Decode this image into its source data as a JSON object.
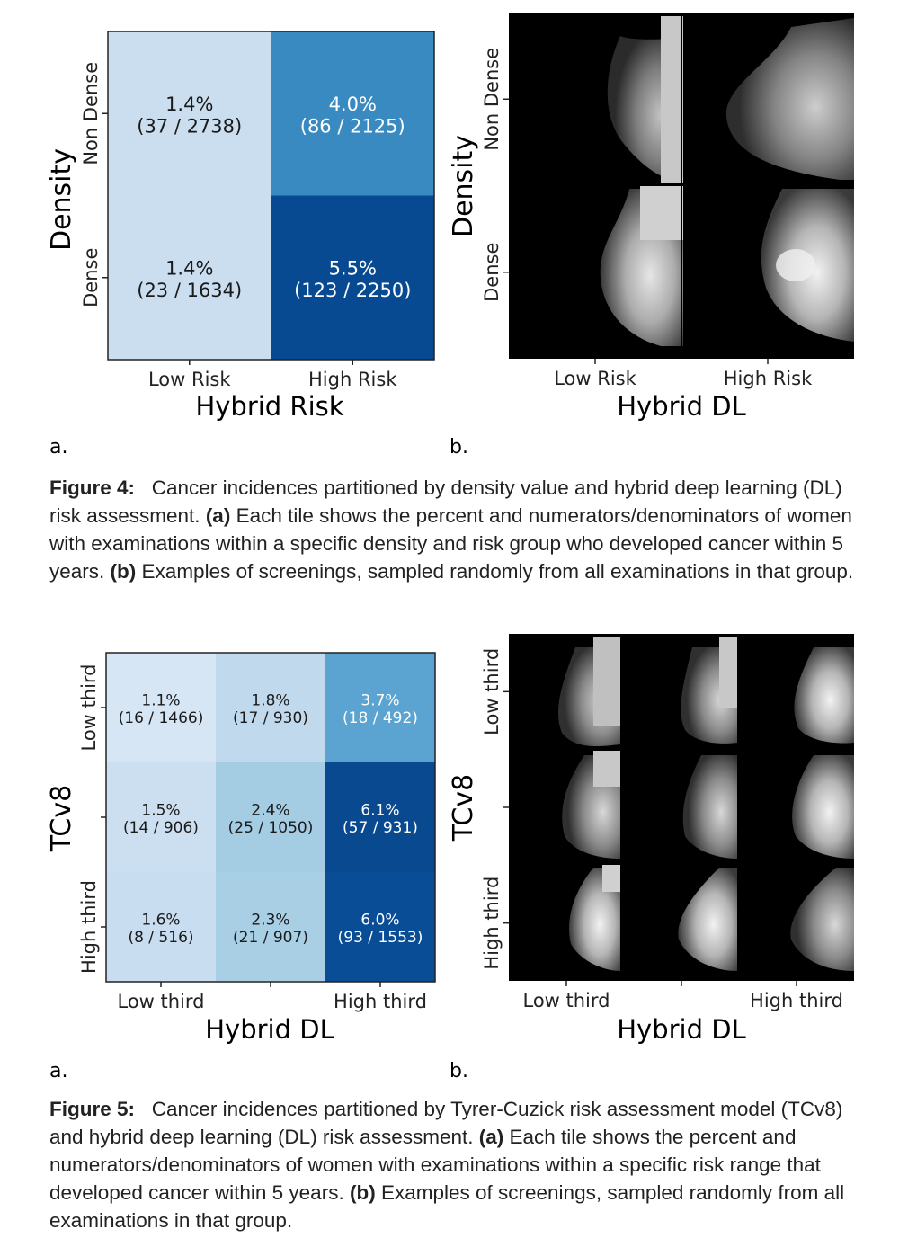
{
  "figure4": {
    "heatmap": {
      "xlabel": "Hybrid Risk",
      "ylabel": "Density",
      "x_ticks": [
        "Low Risk",
        "High Risk"
      ],
      "y_ticks": [
        "Non Dense",
        "Dense"
      ],
      "panel_label": "a."
    },
    "mammo": {
      "xlabel": "Hybrid DL",
      "ylabel": "Density",
      "x_ticks": [
        "Low Risk",
        "High Risk"
      ],
      "y_ticks": [
        "Non Dense",
        "Dense"
      ],
      "panel_label": "b."
    },
    "caption": {
      "label": "Figure 4:",
      "text1": "Cancer incidences partitioned by density value and hybrid deep learning (DL) risk assessment.",
      "a_label": "(a)",
      "text2": "Each tile shows the percent and numerators/denominators of women with examinations within a specific density and risk group who developed cancer within 5 years.",
      "b_label": "(b)",
      "text3": "Examples of screenings, sampled randomly from all examinations in that group."
    }
  },
  "figure5": {
    "heatmap": {
      "xlabel": "Hybrid DL",
      "ylabel": "TCv8",
      "x_ticks": [
        "Low third",
        "",
        "High third"
      ],
      "y_ticks": [
        "Low third",
        "",
        "High third"
      ],
      "panel_label": "a."
    },
    "mammo": {
      "xlabel": "Hybrid DL",
      "ylabel": "TCv8",
      "x_ticks": [
        "Low third",
        "",
        "High third"
      ],
      "y_ticks": [
        "Low third",
        "",
        "High third"
      ],
      "panel_label": "b."
    },
    "caption": {
      "label": "Figure 5:",
      "text1": "Cancer incidences partitioned by Tyrer-Cuzick risk assessment model (TCv8) and hybrid deep learning (DL) risk assessment.",
      "a_label": "(a)",
      "text2": "Each tile shows the percent and numerators/denominators of women with examinations within a specific risk range that developed cancer within 5 years.",
      "b_label": "(b)",
      "text3": "Examples of screenings, sampled randomly from all examinations in that group."
    }
  },
  "chart_data": [
    {
      "type": "heatmap",
      "xlabel": "Hybrid Risk",
      "ylabel": "Density",
      "x_categories": [
        "Low Risk",
        "High Risk"
      ],
      "y_categories": [
        "Non Dense",
        "Dense"
      ],
      "colormap": "Blues",
      "cells": [
        [
          {
            "pct": "1.4%",
            "frac": "(37 / 2738)",
            "value": 1.4
          },
          {
            "pct": "4.0%",
            "frac": "(86 / 2125)",
            "value": 4.0
          }
        ],
        [
          {
            "pct": "1.4%",
            "frac": "(23 / 1634)",
            "value": 1.4
          },
          {
            "pct": "5.5%",
            "frac": "(123 / 2250)",
            "value": 5.5
          }
        ]
      ]
    },
    {
      "type": "heatmap",
      "xlabel": "Hybrid DL",
      "ylabel": "TCv8",
      "x_categories": [
        "Low third",
        "",
        "High third"
      ],
      "y_categories": [
        "Low third",
        "",
        "High third"
      ],
      "colormap": "Blues",
      "cells": [
        [
          {
            "pct": "1.1%",
            "frac": "(16 / 1466)",
            "value": 1.1
          },
          {
            "pct": "1.8%",
            "frac": "(17 / 930)",
            "value": 1.8
          },
          {
            "pct": "3.7%",
            "frac": "(18 / 492)",
            "value": 3.7
          }
        ],
        [
          {
            "pct": "1.5%",
            "frac": "(14 / 906)",
            "value": 1.5
          },
          {
            "pct": "2.4%",
            "frac": "(25 / 1050)",
            "value": 2.4
          },
          {
            "pct": "6.1%",
            "frac": "(57 / 931)",
            "value": 6.1
          }
        ],
        [
          {
            "pct": "1.6%",
            "frac": "(8 / 516)",
            "value": 1.6
          },
          {
            "pct": "2.3%",
            "frac": "(21 / 907)",
            "value": 2.3
          },
          {
            "pct": "6.0%",
            "frac": "(93 / 1553)",
            "value": 6.0
          }
        ]
      ]
    }
  ]
}
